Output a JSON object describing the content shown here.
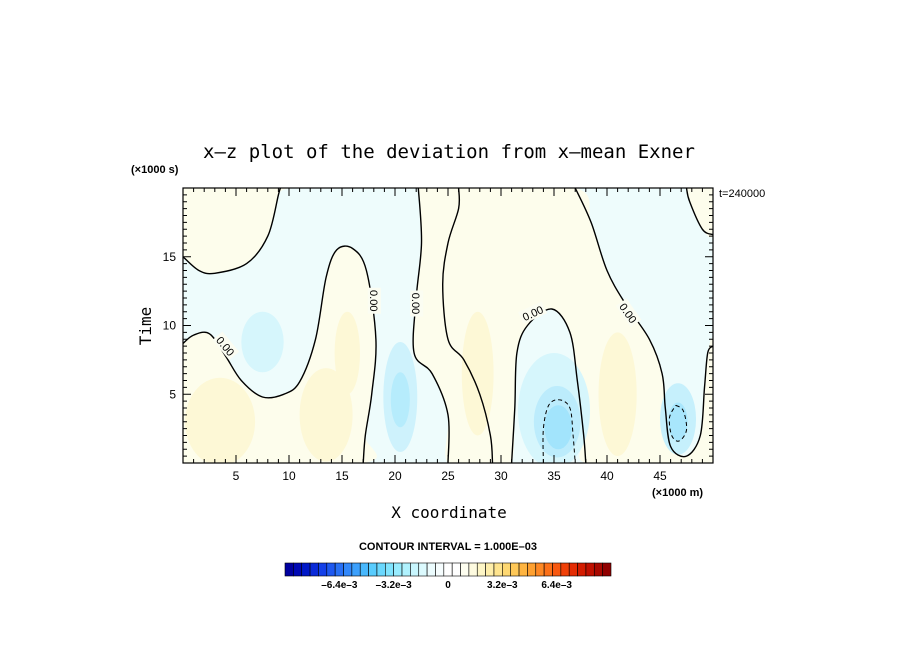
{
  "chart_data": {
    "type": "heatmap",
    "title": "x–z plot of the deviation from x–mean Exner",
    "xlabel": "X coordinate",
    "ylabel": "Time",
    "x_unit": "(×1000 m)",
    "y_unit": "(×1000 s)",
    "time_label": "t=240000",
    "xlim": [
      0,
      50
    ],
    "ylim": [
      0,
      20
    ],
    "x_ticks": [
      5,
      10,
      15,
      20,
      25,
      30,
      35,
      40,
      45
    ],
    "y_ticks": [
      5,
      10,
      15
    ],
    "contour_interval_label": "CONTOUR INTERVAL = 1.000E–03",
    "contour_label": "0.00",
    "zero_contour_labels": [
      {
        "x": 4.0,
        "y": 8.5,
        "text": "0.00",
        "angle": 50
      },
      {
        "x": 18.0,
        "y": 11.8,
        "text": "0.00",
        "angle": 90
      },
      {
        "x": 22.0,
        "y": 11.6,
        "text": "0.00",
        "angle": 90
      },
      {
        "x": 33.0,
        "y": 10.9,
        "text": "0.00",
        "angle": -25
      },
      {
        "x": 42.0,
        "y": 10.9,
        "text": "0.00",
        "angle": 55
      }
    ],
    "zero_contours": [
      [
        [
          0,
          15.0
        ],
        [
          1.5,
          14.0
        ],
        [
          3,
          13.8
        ],
        [
          6,
          14.5
        ],
        [
          8,
          16.5
        ],
        [
          9,
          19.5
        ],
        [
          9.2,
          20
        ]
      ],
      [
        [
          0,
          8.7
        ],
        [
          1,
          9.3
        ],
        [
          2.5,
          9.4
        ],
        [
          4,
          7.8
        ],
        [
          5.5,
          6.0
        ],
        [
          7.5,
          4.8
        ],
        [
          9.5,
          5.0
        ],
        [
          11,
          5.9
        ],
        [
          12.5,
          9.0
        ],
        [
          13.5,
          13.5
        ],
        [
          14.5,
          15.5
        ],
        [
          16,
          15.6
        ],
        [
          17.3,
          14.0
        ],
        [
          18.2,
          9.0
        ],
        [
          17.8,
          5.0
        ],
        [
          17.2,
          2.0
        ],
        [
          17.0,
          0
        ]
      ],
      [
        [
          22.2,
          20
        ],
        [
          22.5,
          16.0
        ],
        [
          22.0,
          12.0
        ],
        [
          21.8,
          8.0
        ],
        [
          23.5,
          6.5
        ],
        [
          25.0,
          3.5
        ],
        [
          25.0,
          0
        ]
      ],
      [
        [
          31.0,
          0
        ],
        [
          31.3,
          4.0
        ],
        [
          31.5,
          8.0
        ],
        [
          32.5,
          10.0
        ],
        [
          34.8,
          11.2
        ],
        [
          36.5,
          9.5
        ],
        [
          37.2,
          6.0
        ],
        [
          37.8,
          2.0
        ],
        [
          38.0,
          0
        ]
      ],
      [
        [
          26.0,
          20
        ],
        [
          26.0,
          18.5
        ],
        [
          25.0,
          16.0
        ],
        [
          24.5,
          13.0
        ],
        [
          25.0,
          9.0
        ],
        [
          26.5,
          7.5
        ],
        [
          28.0,
          5.0
        ],
        [
          29.0,
          2.0
        ],
        [
          29.2,
          0
        ]
      ],
      [
        [
          37.0,
          20
        ],
        [
          38.5,
          17.5
        ],
        [
          40.0,
          14.0
        ],
        [
          41.8,
          11.5
        ],
        [
          44.0,
          9.0
        ],
        [
          45.2,
          6.5
        ],
        [
          45.5,
          4.0
        ],
        [
          46.0,
          1.2
        ],
        [
          47.5,
          0.5
        ],
        [
          48.8,
          2.0
        ],
        [
          49.2,
          5.5
        ],
        [
          49.5,
          8.0
        ],
        [
          50,
          8.5
        ]
      ],
      [
        [
          47.5,
          20
        ],
        [
          47.8,
          19.0
        ],
        [
          49.0,
          17.0
        ],
        [
          50,
          16.6
        ]
      ]
    ],
    "negative_contours": [
      [
        [
          34.0,
          0
        ],
        [
          34.0,
          2.5
        ],
        [
          34.5,
          4.2
        ],
        [
          35.5,
          4.6
        ],
        [
          36.5,
          4.0
        ],
        [
          36.8,
          2.0
        ],
        [
          37.0,
          0
        ]
      ],
      [
        [
          46.5,
          4.2
        ],
        [
          47.2,
          3.8
        ],
        [
          47.5,
          2.4
        ],
        [
          46.8,
          1.6
        ],
        [
          46.1,
          2.0
        ],
        [
          45.9,
          3.3
        ],
        [
          46.5,
          4.2
        ]
      ]
    ],
    "colorbar": {
      "min": -0.0096,
      "max": 0.0096,
      "interval": 0.0004,
      "tick_values": [
        -0.0064,
        -0.0032,
        0,
        0.0032,
        0.0064
      ],
      "tick_labels": [
        "–6.4e–3",
        "–3.2e–3",
        "0",
        "3.2e–3",
        "6.4e–3"
      ],
      "colors": [
        "#0000a0",
        "#0008b4",
        "#0018c8",
        "#0a2ad8",
        "#1440e8",
        "#1e58f0",
        "#2870f5",
        "#3288fa",
        "#3ca0fc",
        "#48b8fd",
        "#58ccfe",
        "#6ad8fe",
        "#80e4fe",
        "#98ecfe",
        "#b0f2fe",
        "#c8f6fe",
        "#dcfafe",
        "#ecfcfe",
        "#f6fdfe",
        "#ffffff",
        "#ffffff",
        "#fefef0",
        "#fefbe0",
        "#fef6c6",
        "#feeeaa",
        "#fee48e",
        "#fed872",
        "#fec858",
        "#feb440",
        "#fea030",
        "#fe8824",
        "#fc7018",
        "#f85810",
        "#f04008",
        "#e42c04",
        "#d41c00",
        "#c01000",
        "#a80800",
        "#900000"
      ]
    },
    "fills": [
      {
        "kind": "rect",
        "x0": 0,
        "x1": 50,
        "y0": 0,
        "y1": 20,
        "color": "#eefcfc"
      },
      {
        "kind": "poly",
        "color": "#fdfdec",
        "points": [
          [
            0,
            20
          ],
          [
            9.2,
            20
          ],
          [
            9,
            19.5
          ],
          [
            8,
            16.5
          ],
          [
            6,
            14.5
          ],
          [
            3,
            13.8
          ],
          [
            1.5,
            14.0
          ],
          [
            0,
            15.0
          ]
        ]
      },
      {
        "kind": "poly",
        "color": "#fdfdec",
        "points": [
          [
            0,
            0
          ],
          [
            17.0,
            0
          ],
          [
            17.2,
            2.0
          ],
          [
            17.8,
            5.0
          ],
          [
            18.2,
            9.0
          ],
          [
            17.3,
            14.0
          ],
          [
            16,
            15.6
          ],
          [
            14.5,
            15.5
          ],
          [
            13.5,
            13.5
          ],
          [
            12.5,
            9.0
          ],
          [
            11,
            5.9
          ],
          [
            9.5,
            5.0
          ],
          [
            7.5,
            4.8
          ],
          [
            5.5,
            6.0
          ],
          [
            4,
            7.8
          ],
          [
            2.5,
            9.4
          ],
          [
            1,
            9.3
          ],
          [
            0,
            8.7
          ]
        ]
      },
      {
        "kind": "poly",
        "color": "#fdfdec",
        "points": [
          [
            22.2,
            20
          ],
          [
            26.0,
            20
          ],
          [
            26.0,
            18.5
          ],
          [
            25.0,
            16.0
          ],
          [
            24.5,
            13.0
          ],
          [
            25.0,
            9.0
          ],
          [
            26.5,
            7.5
          ],
          [
            28.0,
            5.0
          ],
          [
            29.0,
            2.0
          ],
          [
            29.2,
            0
          ],
          [
            25.0,
            0
          ],
          [
            25.0,
            3.5
          ],
          [
            23.5,
            6.5
          ],
          [
            21.8,
            8.0
          ],
          [
            22.0,
            12.0
          ],
          [
            22.5,
            16.0
          ]
        ]
      },
      {
        "kind": "poly",
        "color": "#fdfdec",
        "points": [
          [
            29.2,
            0
          ],
          [
            31.0,
            0
          ],
          [
            31.3,
            4.0
          ],
          [
            31.5,
            8.0
          ],
          [
            32.5,
            10.0
          ],
          [
            34.8,
            11.2
          ],
          [
            36.5,
            9.5
          ],
          [
            37.2,
            6.0
          ],
          [
            37.8,
            2.0
          ],
          [
            38.0,
            0
          ],
          [
            46.0,
            0
          ],
          [
            46.0,
            1.2
          ],
          [
            45.5,
            4.0
          ],
          [
            45.2,
            6.5
          ],
          [
            44.0,
            9.0
          ],
          [
            41.8,
            11.5
          ],
          [
            40.0,
            14.0
          ],
          [
            38.5,
            17.5
          ],
          [
            37.0,
            20
          ],
          [
            26.0,
            20
          ],
          [
            26.0,
            18.5
          ],
          [
            25.0,
            16.0
          ],
          [
            24.5,
            13.0
          ],
          [
            25.0,
            9.0
          ],
          [
            26.5,
            7.5
          ],
          [
            28.0,
            5.0
          ],
          [
            29.0,
            2.0
          ]
        ]
      },
      {
        "kind": "poly",
        "color": "#fdfdec",
        "points": [
          [
            47.5,
            20
          ],
          [
            50,
            20
          ],
          [
            50,
            16.6
          ],
          [
            49.0,
            17.0
          ],
          [
            47.8,
            19.0
          ]
        ]
      },
      {
        "kind": "poly",
        "color": "#fdfdec",
        "points": [
          [
            46.0,
            0
          ],
          [
            50,
            0
          ],
          [
            50,
            8.5
          ],
          [
            49.5,
            8.0
          ],
          [
            49.2,
            5.5
          ],
          [
            48.8,
            2.0
          ],
          [
            47.5,
            0.5
          ],
          [
            46.0,
            1.2
          ]
        ]
      },
      {
        "kind": "ellipse",
        "cx": 7.5,
        "cy": 8.8,
        "rx": 2.0,
        "ry": 2.2,
        "color": "#d6f6fc"
      },
      {
        "kind": "ellipse",
        "cx": 20.5,
        "cy": 4.8,
        "rx": 1.6,
        "ry": 4.0,
        "color": "#cef2fc"
      },
      {
        "kind": "ellipse",
        "cx": 20.5,
        "cy": 4.6,
        "rx": 0.9,
        "ry": 2.0,
        "color": "#b6ecfc"
      },
      {
        "kind": "ellipse",
        "cx": 35.0,
        "cy": 3.8,
        "rx": 3.4,
        "ry": 4.2,
        "color": "#d6f6fc"
      },
      {
        "kind": "ellipse",
        "cx": 35.3,
        "cy": 3.0,
        "rx": 2.2,
        "ry": 2.6,
        "color": "#bcecfc"
      },
      {
        "kind": "ellipse",
        "cx": 35.4,
        "cy": 2.6,
        "rx": 1.3,
        "ry": 1.6,
        "color": "#a2e4fc"
      },
      {
        "kind": "ellipse",
        "cx": 46.7,
        "cy": 3.2,
        "rx": 1.7,
        "ry": 2.6,
        "color": "#c6f0fc"
      },
      {
        "kind": "ellipse",
        "cx": 46.7,
        "cy": 3.0,
        "rx": 0.9,
        "ry": 1.4,
        "color": "#a8e6fc"
      },
      {
        "kind": "ellipse",
        "cx": 3.5,
        "cy": 3.0,
        "rx": 3.3,
        "ry": 3.2,
        "color": "#fdf8d6"
      },
      {
        "kind": "ellipse",
        "cx": 13.5,
        "cy": 3.5,
        "rx": 2.5,
        "ry": 3.4,
        "color": "#fdf8d6"
      },
      {
        "kind": "ellipse",
        "cx": 15.5,
        "cy": 8.0,
        "rx": 1.2,
        "ry": 3.0,
        "color": "#fdf8d6"
      },
      {
        "kind": "ellipse",
        "cx": 27.8,
        "cy": 6.5,
        "rx": 1.5,
        "ry": 4.5,
        "color": "#fdf8d6"
      },
      {
        "kind": "ellipse",
        "cx": 41.0,
        "cy": 5.0,
        "rx": 1.8,
        "ry": 4.5,
        "color": "#fdf8d6"
      }
    ]
  }
}
